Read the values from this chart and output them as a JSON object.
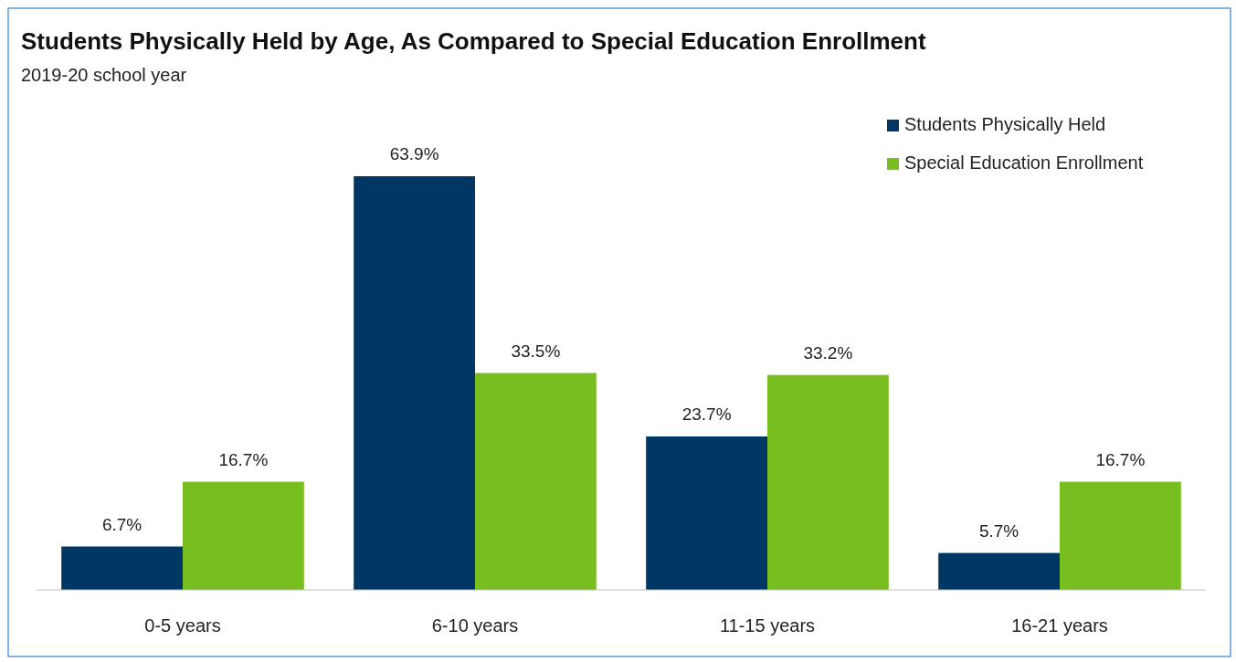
{
  "chart_data": {
    "type": "bar",
    "title": "Students Physically Held by Age, As Compared to Special Education Enrollment",
    "subtitle": "2019-20 school year",
    "categories": [
      "0-5 years",
      "6-10 years",
      "11-15 years",
      "16-21 years"
    ],
    "series": [
      {
        "name": "Students Physically Held",
        "color": "#003764",
        "values": [
          6.7,
          63.9,
          23.7,
          5.7
        ],
        "value_labels": [
          "6.7%",
          "63.9%",
          "23.7%",
          "5.7%"
        ]
      },
      {
        "name": "Special Education Enrollment",
        "color": "#78be20",
        "values": [
          16.7,
          33.5,
          33.2,
          16.7
        ],
        "value_labels": [
          "16.7%",
          "33.5%",
          "33.2%",
          "16.7%"
        ]
      }
    ],
    "legend": "top right"
  }
}
